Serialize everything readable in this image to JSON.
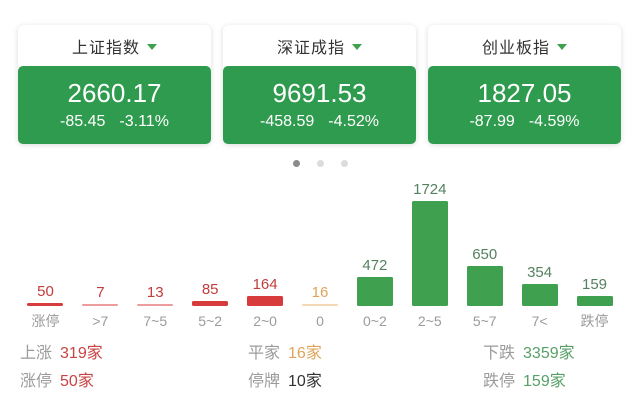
{
  "indices": [
    {
      "name": "上证指数",
      "value": "2660.17",
      "change": "-85.45",
      "change_pct": "-3.11%"
    },
    {
      "name": "深证成指",
      "value": "9691.53",
      "change": "-458.59",
      "change_pct": "-4.52%"
    },
    {
      "name": "创业板指",
      "value": "1827.05",
      "change": "-87.99",
      "change_pct": "-4.59%"
    }
  ],
  "pager": {
    "count": 3,
    "active_index": 0
  },
  "chart_data": {
    "type": "bar",
    "categories": [
      "涨停",
      ">7",
      "7~5",
      "5~2",
      "2~0",
      "0",
      "0~2",
      "2~5",
      "5~7",
      "7<",
      "跌停"
    ],
    "values": [
      50,
      7,
      13,
      85,
      164,
      16,
      472,
      1724,
      650,
      354,
      159
    ],
    "bar_colors": [
      "#d73b3c",
      "#d73b3c",
      "#d73b3c",
      "#d73b3c",
      "#d73b3c",
      "#e7b066",
      "#3fa050",
      "#3fa050",
      "#3fa050",
      "#3fa050",
      "#3fa050"
    ],
    "value_label_colors": [
      "#c13c3c",
      "#c13c3c",
      "#c13c3c",
      "#c13c3c",
      "#c13c3c",
      "#dda45a",
      "#54815f",
      "#54815f",
      "#54815f",
      "#54815f",
      "#54815f"
    ],
    "xlabel": "",
    "ylabel": "",
    "ylim": [
      0,
      1724
    ],
    "grid": false,
    "data_labels": true
  },
  "summary": {
    "items": [
      {
        "label": "上涨",
        "value": "319家"
      },
      {
        "label": "涨停",
        "value": "50家"
      },
      {
        "label": "平家",
        "value": "16家"
      },
      {
        "label": "停牌",
        "value": "10家"
      },
      {
        "label": "下跌",
        "value": "3359家"
      },
      {
        "label": "跌停",
        "value": "159家"
      }
    ]
  },
  "colors": {
    "card_green": "#2f9b4e",
    "chevron_green": "#3fa050",
    "bar_green": "#3fa050",
    "bar_red": "#d73b3c",
    "flat_orange": "#dda45a",
    "up_red": "#c84343",
    "down_green": "#57a068",
    "neutral_dark": "#333333",
    "label_gray": "#9b9b9b",
    "dot_active": "#8b8b8b",
    "dot_inactive": "#dcdcdc"
  }
}
